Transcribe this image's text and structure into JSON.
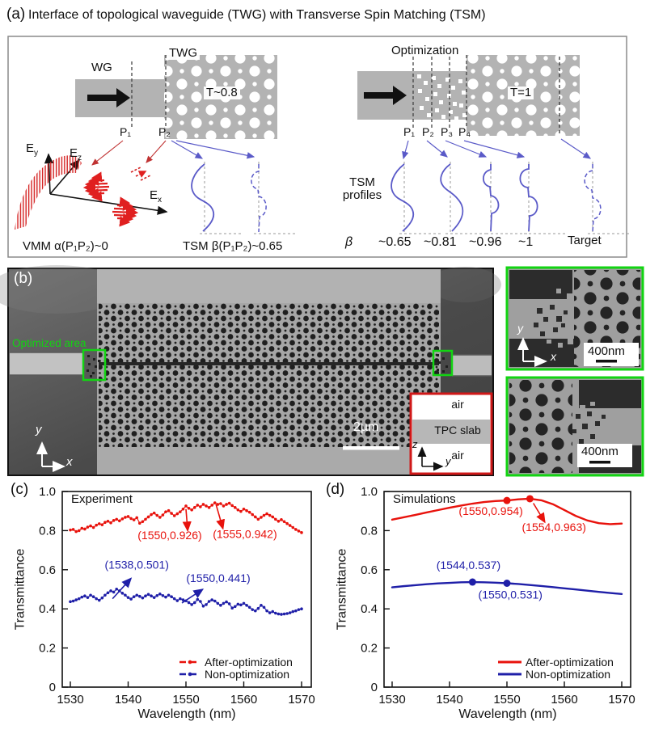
{
  "panel_a": {
    "label": "(a)",
    "title": "Interface of topological waveguide (TWG) with Transverse Spin Matching (TSM)",
    "wg_label": "WG",
    "twg_label": "TWG",
    "t_left": "T~0.8",
    "t_right": "T=1",
    "optimization_label": "Optimization",
    "ports_left": [
      "P₁",
      "P₂"
    ],
    "ports_right": [
      "P₁",
      "P₂",
      "P₃",
      "P₄"
    ],
    "efield_axes": [
      {
        "base": "E",
        "sub": "y"
      },
      {
        "base": "E",
        "sub": "z"
      },
      {
        "base": "E",
        "sub": "x"
      }
    ],
    "vmm_label": "VMM α(P₁P₂)~0",
    "tsm_label": "TSM β(P₁P₂)~0.65",
    "tsm_profiles_line1": "TSM",
    "tsm_profiles_line2": "profiles",
    "beta_symbol": "β",
    "beta_values": [
      "~0.65",
      "~0.81",
      "~0.96",
      "~1"
    ],
    "target_label": "Target"
  },
  "panel_b": {
    "label": "(b)",
    "optimized_area_label": "Optimized area",
    "scale_main": "2µm",
    "scale_inset": "400nm",
    "axis_x": "x",
    "axis_y": "y",
    "inset_axis_z": "z",
    "inset_axis_y": "y",
    "layer_top": "air",
    "layer_mid": "TPC slab",
    "layer_bottom": "air"
  },
  "chart_data": [
    {
      "type": "scatter",
      "panel_label": "(c)",
      "title": "Experiment",
      "xlabel": "Wavelength (nm)",
      "ylabel": "Transmittance",
      "xlim": [
        1530,
        1570
      ],
      "ylim": [
        0,
        1.0
      ],
      "xticks": [
        1530,
        1540,
        1550,
        1560,
        1570
      ],
      "yticks": [
        0,
        0.2,
        0.4,
        0.6,
        0.8,
        1.0
      ],
      "grid": false,
      "legend_position": "bottom-right",
      "x_start": 1530,
      "x_step": 0.5,
      "series": [
        {
          "name": "After-optimization",
          "color": "#e8120c",
          "style": "dotted",
          "values": [
            0.803,
            0.806,
            0.795,
            0.8,
            0.812,
            0.808,
            0.818,
            0.824,
            0.816,
            0.828,
            0.835,
            0.83,
            0.842,
            0.848,
            0.84,
            0.852,
            0.858,
            0.85,
            0.86,
            0.868,
            0.872,
            0.862,
            0.855,
            0.866,
            0.838,
            0.846,
            0.858,
            0.87,
            0.882,
            0.89,
            0.878,
            0.868,
            0.88,
            0.896,
            0.902,
            0.888,
            0.876,
            0.886,
            0.896,
            0.91,
            0.926,
            0.914,
            0.906,
            0.918,
            0.93,
            0.922,
            0.934,
            0.926,
            0.918,
            0.93,
            0.942,
            0.934,
            0.938,
            0.926,
            0.934,
            0.94,
            0.928,
            0.918,
            0.906,
            0.898,
            0.91,
            0.902,
            0.894,
            0.882,
            0.87,
            0.858,
            0.868,
            0.878,
            0.886,
            0.878,
            0.87,
            0.858,
            0.848,
            0.856,
            0.846,
            0.836,
            0.826,
            0.816,
            0.806,
            0.798,
            0.79
          ]
        },
        {
          "name": "Non-optimization",
          "color": "#1f1fa8",
          "style": "dotted",
          "values": [
            0.437,
            0.44,
            0.446,
            0.452,
            0.46,
            0.466,
            0.458,
            0.47,
            0.462,
            0.452,
            0.444,
            0.456,
            0.47,
            0.482,
            0.492,
            0.486,
            0.501,
            0.492,
            0.48,
            0.47,
            0.458,
            0.45,
            0.462,
            0.47,
            0.464,
            0.456,
            0.466,
            0.474,
            0.466,
            0.458,
            0.468,
            0.476,
            0.468,
            0.46,
            0.47,
            0.462,
            0.452,
            0.442,
            0.452,
            0.446,
            0.441,
            0.432,
            0.422,
            0.432,
            0.448,
            0.438,
            0.414,
            0.422,
            0.438,
            0.446,
            0.44,
            0.428,
            0.418,
            0.428,
            0.436,
            0.426,
            0.404,
            0.412,
            0.424,
            0.42,
            0.428,
            0.418,
            0.408,
            0.396,
            0.39,
            0.402,
            0.418,
            0.408,
            0.39,
            0.38,
            0.386,
            0.378,
            0.374,
            0.372,
            0.374,
            0.376,
            0.38,
            0.386,
            0.39,
            0.396,
            0.4
          ]
        }
      ],
      "annotations": [
        {
          "text": "(1550,0.926)",
          "color": "#e8120c",
          "tx": 1547.2,
          "ty": 0.757,
          "arrow": [
            1550.0,
            0.91,
            1550.3,
            0.8
          ]
        },
        {
          "text": "(1555,0.942)",
          "color": "#e8120c",
          "tx": 1560.2,
          "ty": 0.763,
          "arrow": [
            1555.2,
            0.934,
            1556.4,
            0.81
          ]
        },
        {
          "text": "(1538,0.501)",
          "color": "#1f1fa8",
          "tx": 1541.5,
          "ty": 0.606,
          "arrow": [
            1537.3,
            0.452,
            1540.5,
            0.556
          ]
        },
        {
          "text": "(1550,0.441)",
          "color": "#1f1fa8",
          "tx": 1555.6,
          "ty": 0.537,
          "arrow": [
            1549.3,
            0.43,
            1552.9,
            0.5
          ]
        }
      ]
    },
    {
      "type": "line",
      "panel_label": "(d)",
      "title": "Simulations",
      "xlabel": "Wavelength (nm)",
      "ylabel": "Transmittance",
      "xlim": [
        1530,
        1570
      ],
      "ylim": [
        0,
        1.0
      ],
      "xticks": [
        1530,
        1540,
        1550,
        1560,
        1570
      ],
      "yticks": [
        0,
        0.2,
        0.4,
        0.6,
        0.8,
        1.0
      ],
      "grid": false,
      "legend_position": "bottom-right",
      "x_start": 1530,
      "x_step": 2,
      "series": [
        {
          "name": "After-optimization",
          "color": "#e8120c",
          "style": "line",
          "values": [
            0.856,
            0.868,
            0.88,
            0.893,
            0.905,
            0.917,
            0.928,
            0.938,
            0.946,
            0.951,
            0.954,
            0.96,
            0.963,
            0.955,
            0.935,
            0.905,
            0.875,
            0.852,
            0.838,
            0.833,
            0.836
          ],
          "points": [
            [
              1550,
              0.954
            ],
            [
              1554,
              0.963
            ]
          ]
        },
        {
          "name": "Non-optimization",
          "color": "#1f1fa8",
          "style": "line",
          "values": [
            0.51,
            0.516,
            0.521,
            0.526,
            0.53,
            0.533,
            0.536,
            0.537,
            0.536,
            0.534,
            0.531,
            0.527,
            0.522,
            0.517,
            0.511,
            0.505,
            0.499,
            0.493,
            0.487,
            0.481,
            0.476
          ],
          "points": [
            [
              1544,
              0.537
            ],
            [
              1550,
              0.531
            ]
          ]
        }
      ],
      "annotations": [
        {
          "text": "(1550,0.954)",
          "color": "#e8120c",
          "tx": 1547.2,
          "ty": 0.88
        },
        {
          "text": "(1554,0.963)",
          "color": "#e8120c",
          "tx": 1558.2,
          "ty": 0.798,
          "arrow": [
            1554.6,
            0.94,
            1556.6,
            0.843
          ]
        },
        {
          "text": "(1544,0.537)",
          "color": "#1f1fa8",
          "tx": 1543.3,
          "ty": 0.603
        },
        {
          "text": "(1550,0.531)",
          "color": "#1f1fa8",
          "tx": 1550.6,
          "ty": 0.452
        }
      ]
    }
  ]
}
